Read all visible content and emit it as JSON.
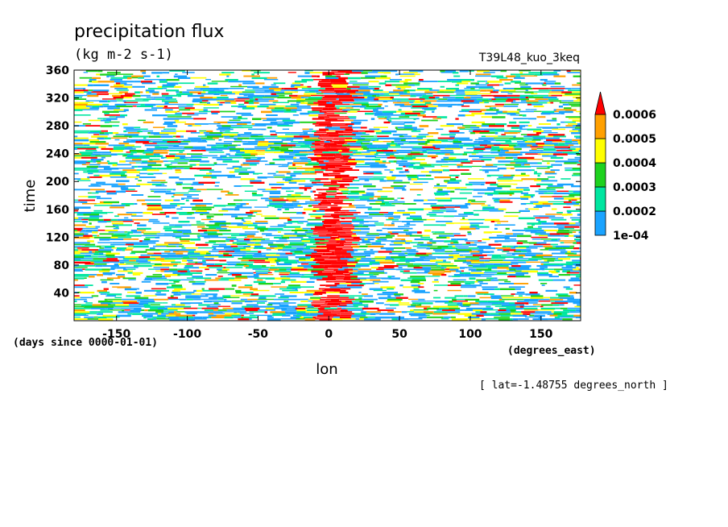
{
  "chart_data": {
    "type": "heatmap",
    "title": "precipitation flux",
    "units": "(kg m-2 s-1)",
    "dataset": "T39L48_kuo_3keq",
    "xlabel": "lon",
    "x_units": "(degrees_east)",
    "ylabel": "time",
    "y_units": "(days since 0000-01-01)",
    "note": "[ lat=-1.48755 degrees_north ]",
    "xlim": [
      -180,
      178
    ],
    "ylim": [
      0,
      360
    ],
    "x_ticks": [
      -150,
      -100,
      -50,
      0,
      50,
      100,
      150
    ],
    "x_tick_labels": [
      "-150",
      "-100",
      "-50",
      "0",
      "50",
      "100",
      "150"
    ],
    "y_ticks": [
      40,
      80,
      120,
      160,
      200,
      240,
      280,
      320,
      360
    ],
    "y_tick_labels": [
      "40",
      "80",
      "120",
      "160",
      "200",
      "240",
      "280",
      "320",
      "360"
    ],
    "colorbar": {
      "levels": [
        "1e-04",
        "0.0002",
        "0.0003",
        "0.0004",
        "0.0005",
        "0.0006"
      ],
      "colors": [
        "#1aa3ff",
        "#00e6a0",
        "#1ed21e",
        "#ffff00",
        "#ffa000",
        "#ff0000"
      ],
      "extend": "max"
    },
    "grid": false
  }
}
